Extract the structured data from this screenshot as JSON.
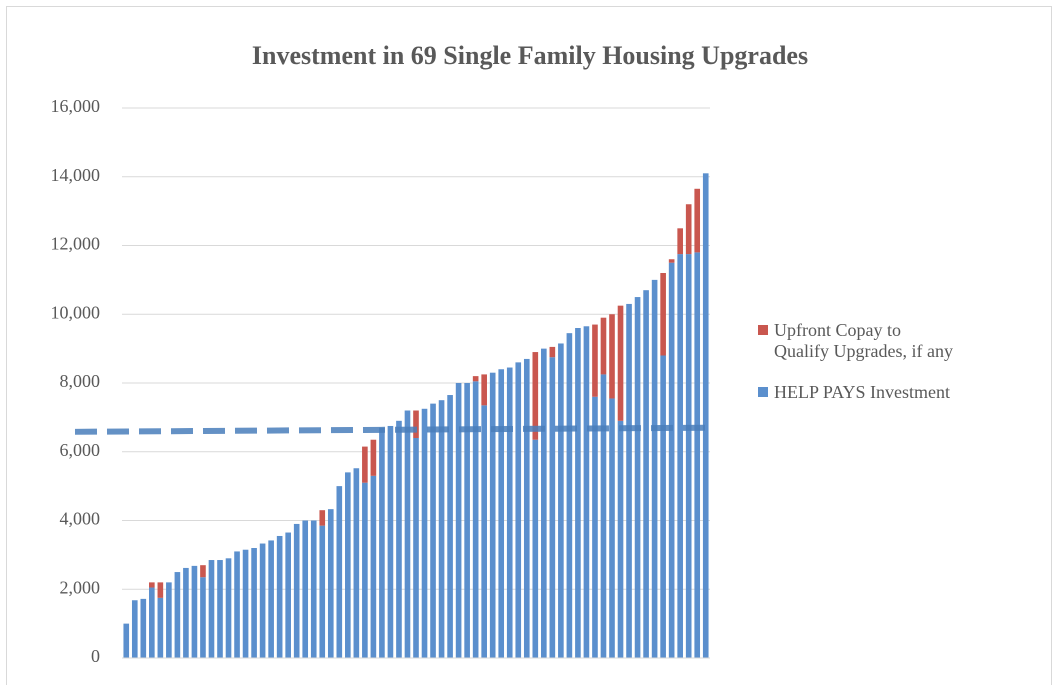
{
  "chart_data": {
    "type": "stacked_bar",
    "title": "Investment in 69 Single Family Housing Upgrades",
    "categories": [
      null,
      null,
      null,
      null,
      null,
      null,
      null,
      null,
      null,
      null,
      null,
      null,
      null,
      null,
      null,
      null,
      null,
      null,
      null,
      null,
      null,
      null,
      null,
      null,
      null,
      null,
      null,
      null,
      null,
      null,
      null,
      null,
      null,
      null,
      null,
      null,
      null,
      null,
      null,
      null,
      null,
      null,
      null,
      null,
      null,
      null,
      null,
      null,
      null,
      null,
      null,
      null,
      null,
      null,
      null,
      null,
      null,
      null,
      null,
      null,
      null,
      null,
      null,
      null,
      null,
      null,
      null,
      null,
      null
    ],
    "series": [
      {
        "name": "HELP PAYS Investment",
        "color": "#5b8fcd",
        "values": [
          1000,
          1680,
          1720,
          2050,
          1750,
          2200,
          2500,
          2620,
          2680,
          2350,
          2850,
          2850,
          2900,
          3100,
          3150,
          3200,
          3330,
          3420,
          3550,
          3650,
          3900,
          4000,
          4000,
          3850,
          4330,
          5000,
          5400,
          5520,
          5100,
          5300,
          6700,
          6750,
          6900,
          7200,
          6400,
          7250,
          7400,
          7500,
          7650,
          8000,
          8000,
          8050,
          7350,
          8300,
          8400,
          8450,
          8600,
          8700,
          6350,
          9000,
          8750,
          9150,
          9450,
          9600,
          9650,
          7600,
          8250,
          7550,
          6900,
          10300,
          10500,
          10700,
          11000,
          8800,
          11500,
          11750,
          11750,
          11800,
          14100
        ]
      },
      {
        "name": "Upfront Copay to Qualify Upgrades, if any",
        "color": "#c9574f",
        "values": [
          0,
          0,
          0,
          150,
          450,
          0,
          0,
          0,
          0,
          350,
          0,
          0,
          0,
          0,
          0,
          0,
          0,
          0,
          0,
          0,
          0,
          0,
          0,
          450,
          0,
          0,
          0,
          0,
          1050,
          1050,
          0,
          0,
          0,
          0,
          800,
          0,
          0,
          0,
          0,
          0,
          0,
          150,
          900,
          0,
          0,
          0,
          0,
          0,
          2550,
          0,
          300,
          0,
          0,
          0,
          0,
          2100,
          1650,
          2450,
          3350,
          0,
          0,
          0,
          0,
          2400,
          100,
          750,
          1450,
          1850,
          0
        ]
      }
    ],
    "reference_line": {
      "values": [
        6580,
        6700
      ],
      "color": "#4a7ebb"
    },
    "ylim": [
      0,
      16000
    ],
    "yticks": [
      0,
      {
        "value": 2000,
        "label": "2,000"
      },
      {
        "value": 4000,
        "label": "4,000"
      },
      {
        "value": 6000,
        "label": "6,000"
      },
      {
        "value": 8000,
        "label": "8,000"
      },
      {
        "value": 10000,
        "label": "10,000"
      },
      {
        "value": 12000,
        "label": "12,000"
      },
      {
        "value": 14000,
        "label": "14,000"
      },
      {
        "value": 16000,
        "label": "16,000"
      }
    ],
    "grid": true,
    "legend": "right"
  }
}
